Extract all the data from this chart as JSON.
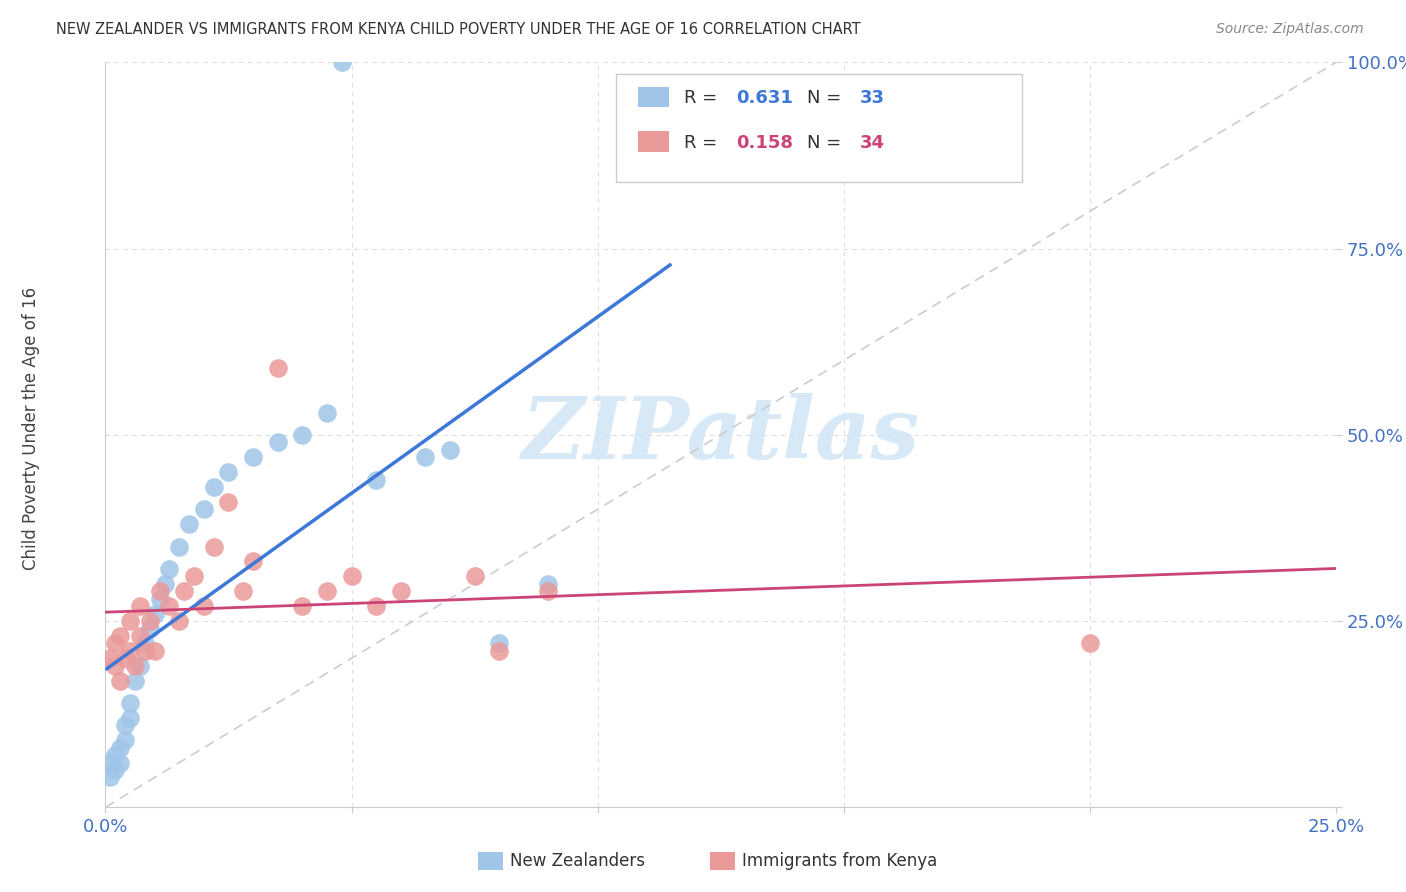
{
  "title": "NEW ZEALANDER VS IMMIGRANTS FROM KENYA CHILD POVERTY UNDER THE AGE OF 16 CORRELATION CHART",
  "source": "Source: ZipAtlas.com",
  "ylabel": "Child Poverty Under the Age of 16",
  "xlim": [
    0.0,
    0.25
  ],
  "ylim": [
    0.0,
    1.0
  ],
  "nz_R": "0.631",
  "nz_N": "33",
  "kenya_R": "0.158",
  "kenya_N": "34",
  "nz_color": "#9fc5e8",
  "kenya_color": "#ea9999",
  "nz_line_color": "#3c78d8",
  "kenya_line_color": "#cc4477",
  "ref_line_color": "#cccccc",
  "tick_color": "#4472c4",
  "grid_color": "#dddddd",
  "nz_x": [
    0.001,
    0.001,
    0.002,
    0.002,
    0.003,
    0.003,
    0.004,
    0.004,
    0.005,
    0.005,
    0.006,
    0.007,
    0.008,
    0.009,
    0.01,
    0.011,
    0.012,
    0.013,
    0.015,
    0.017,
    0.02,
    0.022,
    0.025,
    0.03,
    0.035,
    0.04,
    0.045,
    0.055,
    0.065,
    0.07,
    0.08,
    0.09,
    0.048
  ],
  "nz_y": [
    0.04,
    0.06,
    0.05,
    0.07,
    0.06,
    0.08,
    0.09,
    0.11,
    0.12,
    0.14,
    0.17,
    0.19,
    0.22,
    0.24,
    0.26,
    0.28,
    0.3,
    0.32,
    0.35,
    0.38,
    0.4,
    0.43,
    0.45,
    0.47,
    0.49,
    0.5,
    0.53,
    0.44,
    0.47,
    0.48,
    0.22,
    0.3,
    1.0
  ],
  "kenya_x": [
    0.001,
    0.002,
    0.002,
    0.003,
    0.003,
    0.004,
    0.005,
    0.005,
    0.006,
    0.007,
    0.007,
    0.008,
    0.009,
    0.01,
    0.011,
    0.013,
    0.015,
    0.016,
    0.018,
    0.02,
    0.022,
    0.025,
    0.028,
    0.03,
    0.035,
    0.04,
    0.045,
    0.05,
    0.055,
    0.06,
    0.075,
    0.08,
    0.09,
    0.2
  ],
  "kenya_y": [
    0.2,
    0.19,
    0.22,
    0.17,
    0.23,
    0.2,
    0.25,
    0.21,
    0.19,
    0.23,
    0.27,
    0.21,
    0.25,
    0.21,
    0.29,
    0.27,
    0.25,
    0.29,
    0.31,
    0.27,
    0.35,
    0.41,
    0.29,
    0.33,
    0.59,
    0.27,
    0.29,
    0.31,
    0.27,
    0.29,
    0.31,
    0.21,
    0.29,
    0.22
  ],
  "watermark_text": "ZIPatlas",
  "watermark_color": "#d0e4f5",
  "legend_box_color": "#f0f0f0",
  "legend_border_color": "#cccccc",
  "background_color": "#ffffff"
}
